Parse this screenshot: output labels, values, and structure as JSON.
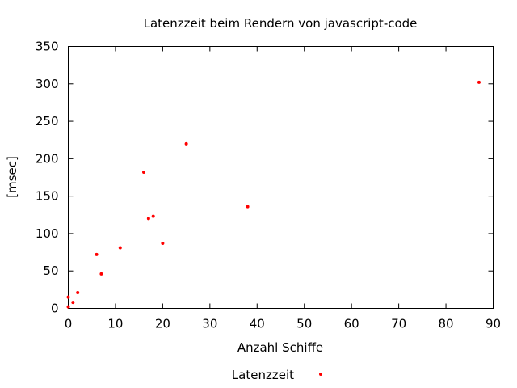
{
  "chart_data": {
    "type": "scatter",
    "title": "Latenzzeit beim Rendern von javascript-code",
    "xlabel": "Anzahl Schiffe",
    "ylabel": "[msec]",
    "xlim": [
      0,
      90
    ],
    "ylim": [
      0,
      350
    ],
    "xticks": [
      0,
      10,
      20,
      30,
      40,
      50,
      60,
      70,
      80,
      90
    ],
    "yticks": [
      0,
      50,
      100,
      150,
      200,
      250,
      300,
      350
    ],
    "grid": false,
    "legend_position": "bottom-center",
    "series": [
      {
        "name": "Latenzzeit",
        "color": "#ff0000",
        "points": [
          {
            "x": 0,
            "y": 2
          },
          {
            "x": 0,
            "y": 15
          },
          {
            "x": 1,
            "y": 8
          },
          {
            "x": 2,
            "y": 21
          },
          {
            "x": 6,
            "y": 72
          },
          {
            "x": 7,
            "y": 46
          },
          {
            "x": 11,
            "y": 81
          },
          {
            "x": 16,
            "y": 182
          },
          {
            "x": 17,
            "y": 120
          },
          {
            "x": 18,
            "y": 123
          },
          {
            "x": 20,
            "y": 87
          },
          {
            "x": 25,
            "y": 220
          },
          {
            "x": 38,
            "y": 136
          },
          {
            "x": 87,
            "y": 302
          }
        ]
      }
    ]
  }
}
